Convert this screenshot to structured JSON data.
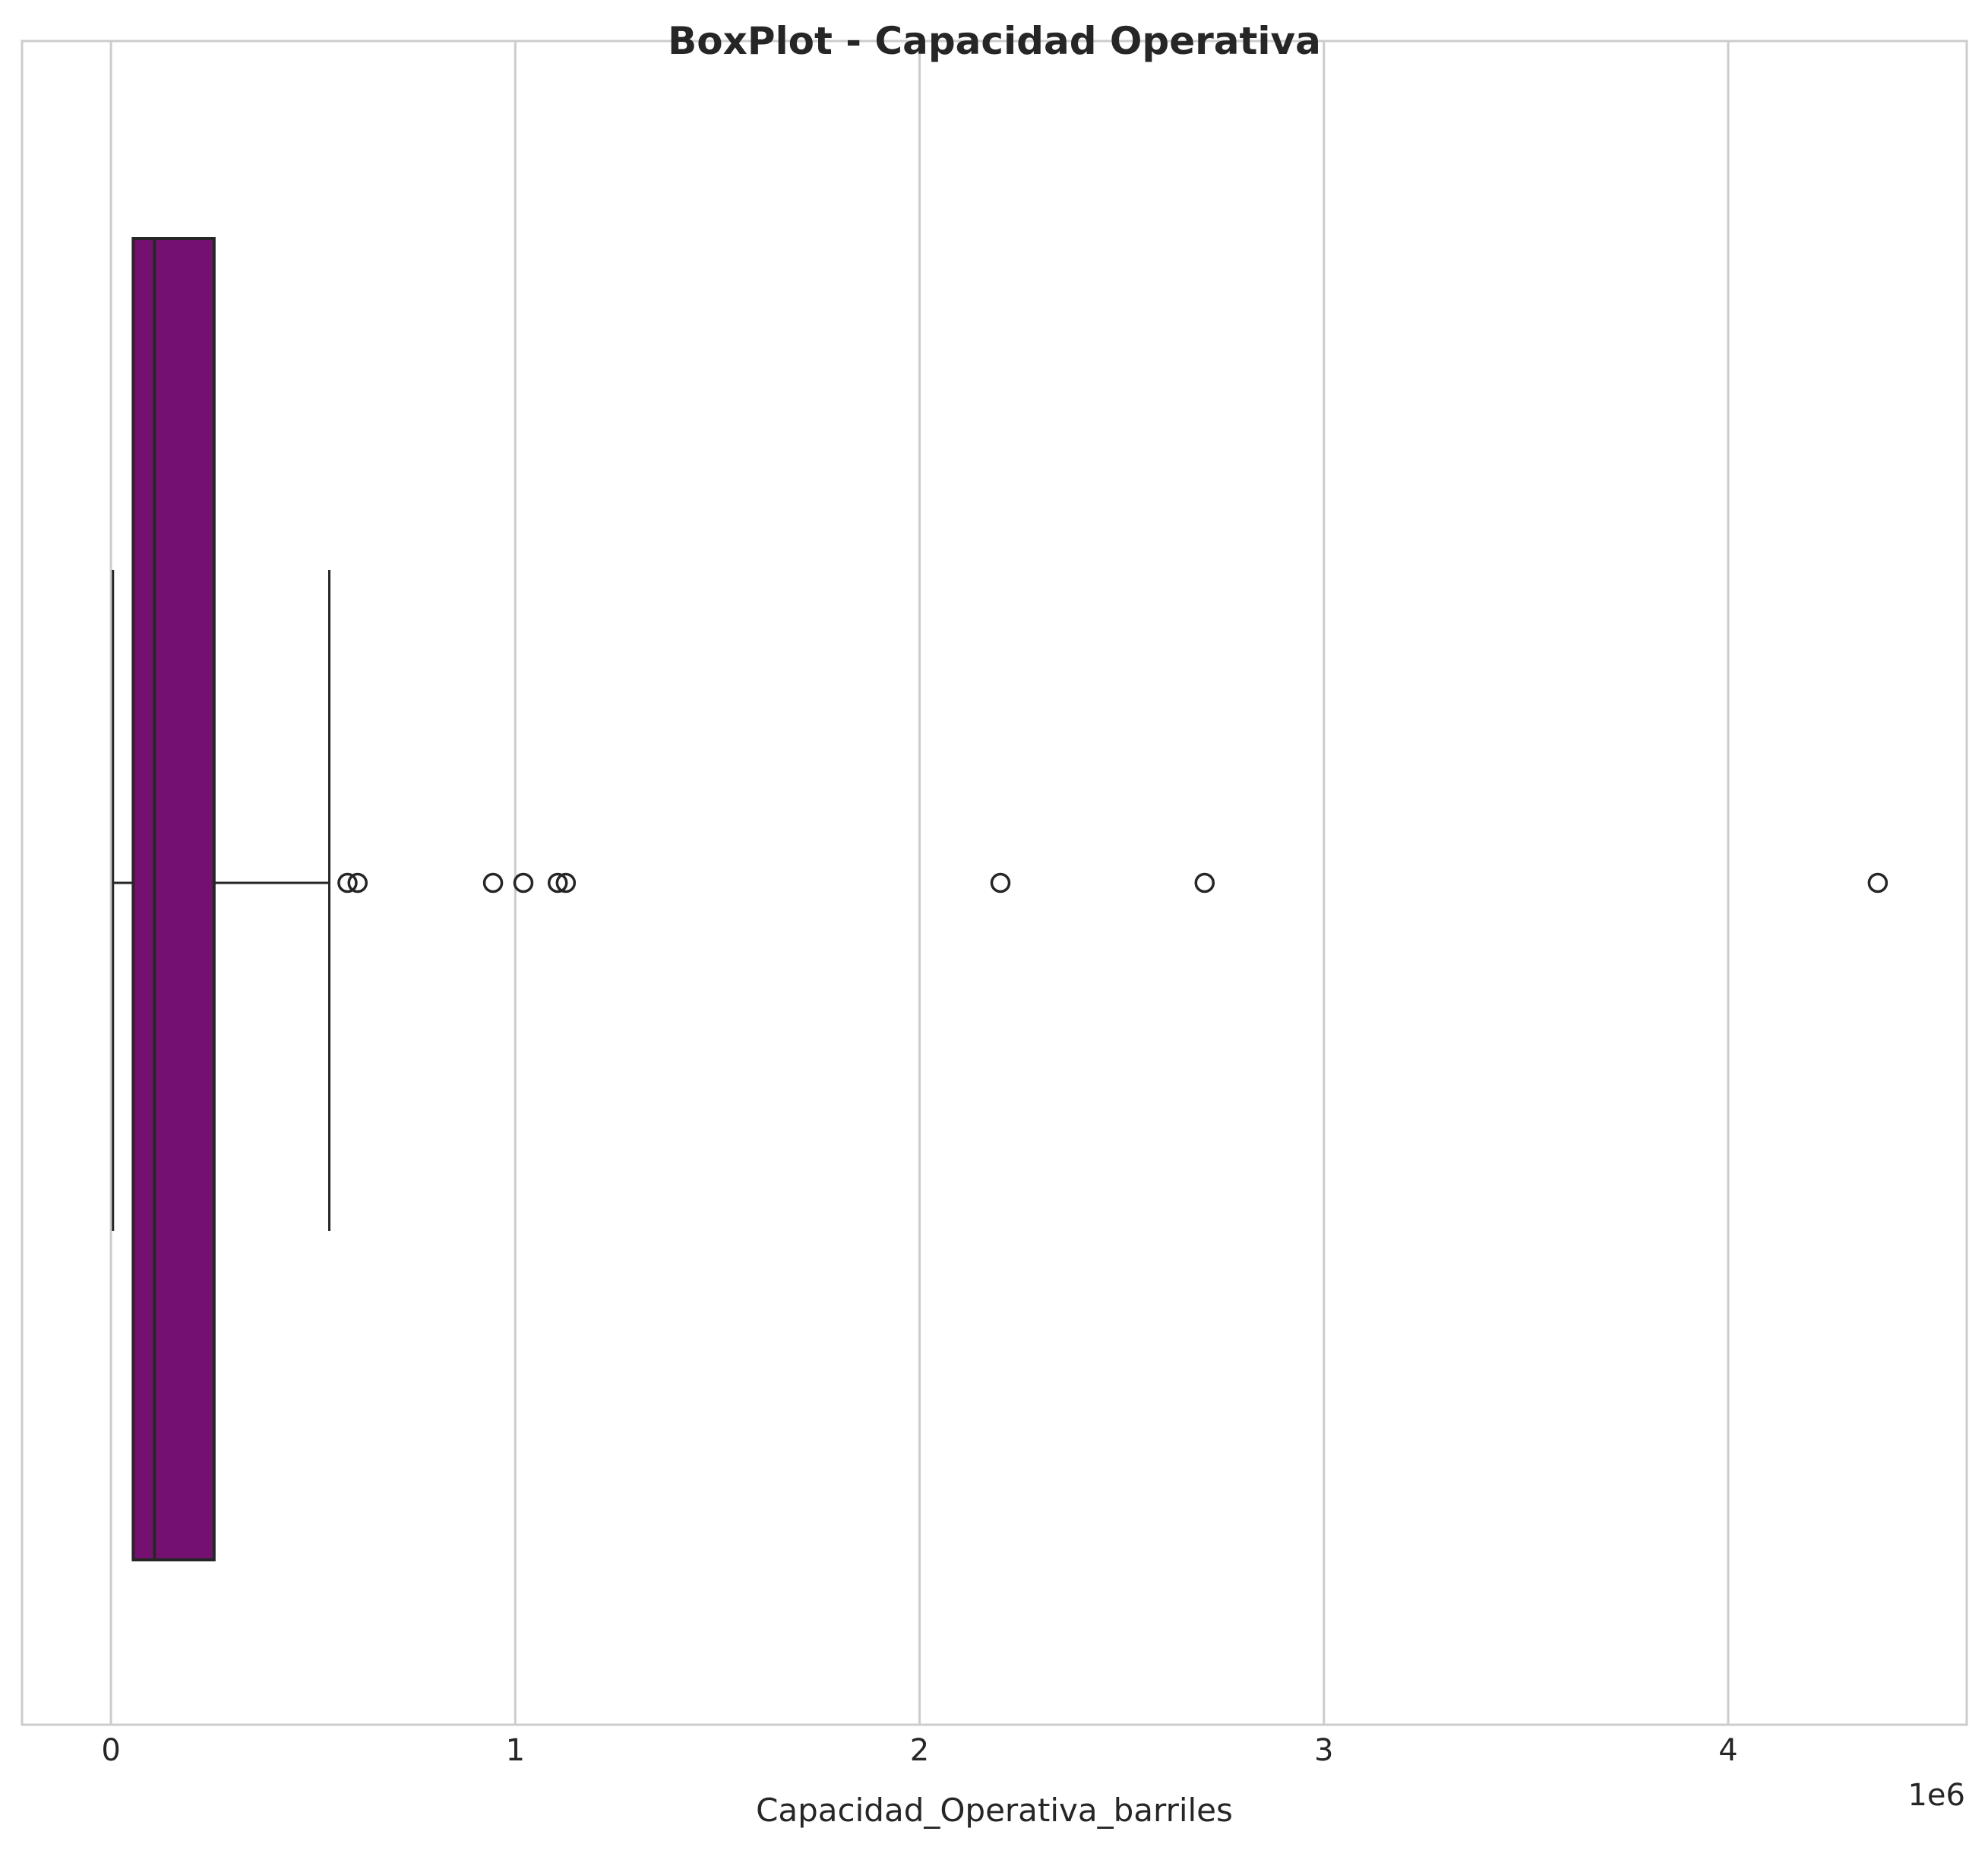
{
  "chart_data": {
    "type": "boxplot",
    "title": "BoxPlot - Capacidad Operativa",
    "xlabel": "Capacidad_Operativa_barriles",
    "ylabel": "",
    "orientation": "horizontal",
    "axis_offset_label": "1e6",
    "xlim": [
      -0.22,
      4.59
    ],
    "x_ticks": [
      0,
      1,
      2,
      3,
      4
    ],
    "x_tick_labels": [
      "0",
      "1",
      "2",
      "3",
      "4"
    ],
    "x_unit_multiplier": 1000000,
    "grid": true,
    "box": {
      "whisker_low": 0.005,
      "q1": 0.055,
      "median": 0.108,
      "q3": 0.255,
      "whisker_high": 0.54,
      "fill_color": "#731070",
      "edge_color": "#262626"
    },
    "outliers": [
      0.585,
      0.61,
      0.945,
      1.02,
      1.105,
      1.125,
      2.2,
      2.705,
      4.37
    ]
  }
}
